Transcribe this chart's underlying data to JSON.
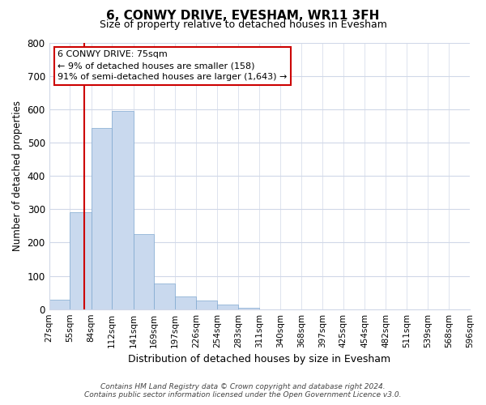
{
  "title": "6, CONWY DRIVE, EVESHAM, WR11 3FH",
  "subtitle": "Size of property relative to detached houses in Evesham",
  "xlabel": "Distribution of detached houses by size in Evesham",
  "ylabel": "Number of detached properties",
  "bar_edges": [
    27,
    55,
    84,
    112,
    141,
    169,
    197,
    226,
    254,
    283,
    311,
    340,
    368,
    397,
    425,
    454,
    482,
    511,
    539,
    568,
    596
  ],
  "bar_heights": [
    28,
    290,
    543,
    595,
    225,
    78,
    37,
    25,
    13,
    5,
    0,
    0,
    0,
    0,
    0,
    0,
    0,
    0,
    0,
    0
  ],
  "bar_color": "#c9d9ee",
  "bar_edgecolor": "#7fa8d0",
  "vline_x": 75,
  "vline_color": "#cc0000",
  "ylim": [
    0,
    800
  ],
  "yticks": [
    0,
    100,
    200,
    300,
    400,
    500,
    600,
    700,
    800
  ],
  "annotation_line1": "6 CONWY DRIVE: 75sqm",
  "annotation_line2": "← 9% of detached houses are smaller (158)",
  "annotation_line3": "91% of semi-detached houses are larger (1,643) →",
  "annotation_box_facecolor": "#ffffff",
  "annotation_box_edgecolor": "#cc0000",
  "footer_line1": "Contains HM Land Registry data © Crown copyright and database right 2024.",
  "footer_line2": "Contains public sector information licensed under the Open Government Licence v3.0.",
  "figure_facecolor": "#ffffff",
  "plot_facecolor": "#ffffff",
  "grid_color": "#d0d8e8"
}
